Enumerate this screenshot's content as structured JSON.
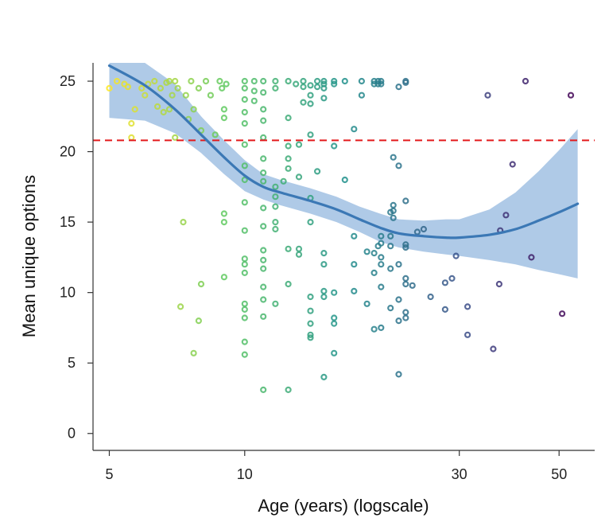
{
  "chart_data": {
    "type": "scatter",
    "title": "",
    "xlabel": "Age (years) (logscale)",
    "ylabel": "Mean unique options",
    "xscale": "log",
    "xlim": [
      4.6,
      60
    ],
    "ylim": [
      -1.2,
      26.3
    ],
    "xticks": [
      5,
      10,
      30,
      50
    ],
    "yticks": [
      0,
      5,
      10,
      15,
      20,
      25
    ],
    "reference_line": {
      "y": 20.8,
      "style": "dashed",
      "color": "#e31a1c"
    },
    "colors": {
      "fit_line": "#3b78b5",
      "ci_band": "#8db3dd",
      "axis": "#333333"
    },
    "colormap": "viridis (young = yellow, old = purple)",
    "fit": {
      "x": [
        5,
        6,
        7,
        8,
        9,
        10,
        11,
        12,
        14,
        16,
        18,
        20,
        22,
        25,
        28,
        30,
        35,
        40,
        45,
        50,
        55
      ],
      "y": [
        26.1,
        24.7,
        23.0,
        21.2,
        19.6,
        18.3,
        17.5,
        17.1,
        16.5,
        15.9,
        15.2,
        14.6,
        14.2,
        14.0,
        13.9,
        13.9,
        14.1,
        14.5,
        15.1,
        15.7,
        16.3
      ],
      "lower": [
        22.4,
        22.2,
        21.3,
        19.9,
        18.4,
        17.2,
        16.6,
        16.2,
        15.6,
        15.0,
        14.3,
        13.6,
        13.2,
        12.9,
        12.7,
        12.6,
        12.3,
        12.0,
        11.6,
        11.3,
        11.0
      ],
      "upper": [
        26.3,
        26.3,
        24.8,
        22.5,
        20.8,
        19.4,
        18.4,
        18.0,
        17.4,
        16.8,
        16.1,
        15.6,
        15.2,
        15.1,
        15.2,
        15.2,
        15.9,
        17.1,
        18.6,
        20.1,
        21.6
      ]
    },
    "points": [
      [
        5.0,
        24.5
      ],
      [
        5.2,
        25.0
      ],
      [
        5.4,
        24.8
      ],
      [
        5.5,
        24.6
      ],
      [
        5.6,
        22.0
      ],
      [
        5.6,
        21.0
      ],
      [
        5.7,
        23.0
      ],
      [
        5.9,
        24.5
      ],
      [
        6.0,
        24.0
      ],
      [
        6.1,
        24.8
      ],
      [
        6.3,
        25.0
      ],
      [
        6.4,
        23.2
      ],
      [
        6.5,
        24.5
      ],
      [
        6.6,
        22.8
      ],
      [
        6.7,
        24.9
      ],
      [
        6.8,
        25.0
      ],
      [
        6.8,
        23.0
      ],
      [
        6.9,
        24.0
      ],
      [
        7.0,
        25.0
      ],
      [
        7.0,
        21.0
      ],
      [
        7.1,
        24.5
      ],
      [
        7.2,
        9.0
      ],
      [
        7.3,
        15.0
      ],
      [
        7.4,
        24.0
      ],
      [
        7.5,
        22.3
      ],
      [
        7.6,
        25.0
      ],
      [
        7.7,
        5.7
      ],
      [
        7.7,
        23.0
      ],
      [
        7.9,
        24.5
      ],
      [
        7.9,
        8.0
      ],
      [
        8.0,
        10.6
      ],
      [
        8.0,
        21.5
      ],
      [
        8.2,
        25.0
      ],
      [
        8.4,
        24.0
      ],
      [
        8.6,
        21.2
      ],
      [
        8.8,
        25.0
      ],
      [
        8.9,
        24.5
      ],
      [
        9.0,
        23.0
      ],
      [
        9.0,
        22.4
      ],
      [
        9.0,
        11.1
      ],
      [
        9.0,
        15.6
      ],
      [
        9.0,
        15.0
      ],
      [
        9.1,
        24.8
      ],
      [
        10.0,
        25.0
      ],
      [
        10.0,
        24.5
      ],
      [
        10.0,
        23.7
      ],
      [
        10.0,
        22.8
      ],
      [
        10.0,
        22.0
      ],
      [
        10.0,
        20.5
      ],
      [
        10.0,
        19.0
      ],
      [
        10.0,
        18.0
      ],
      [
        10.0,
        16.4
      ],
      [
        10.0,
        14.4
      ],
      [
        10.0,
        12.4
      ],
      [
        10.0,
        12.0
      ],
      [
        10.0,
        11.4
      ],
      [
        10.0,
        9.2
      ],
      [
        10.0,
        8.8
      ],
      [
        10.0,
        8.2
      ],
      [
        10.0,
        6.5
      ],
      [
        10.0,
        5.6
      ],
      [
        10.5,
        25.0
      ],
      [
        10.5,
        24.3
      ],
      [
        10.5,
        23.6
      ],
      [
        11.0,
        25.0
      ],
      [
        11.0,
        24.2
      ],
      [
        11.0,
        23.0
      ],
      [
        11.0,
        22.2
      ],
      [
        11.0,
        21.0
      ],
      [
        11.0,
        19.5
      ],
      [
        11.0,
        18.5
      ],
      [
        11.0,
        17.9
      ],
      [
        11.0,
        16.0
      ],
      [
        11.0,
        14.7
      ],
      [
        11.0,
        13.0
      ],
      [
        11.0,
        12.3
      ],
      [
        11.0,
        11.7
      ],
      [
        11.0,
        10.4
      ],
      [
        11.0,
        9.5
      ],
      [
        11.0,
        8.3
      ],
      [
        11.0,
        3.1
      ],
      [
        11.7,
        25.0
      ],
      [
        11.7,
        24.5
      ],
      [
        11.7,
        17.5
      ],
      [
        11.7,
        16.8
      ],
      [
        11.7,
        16.1
      ],
      [
        11.7,
        15.0
      ],
      [
        11.7,
        14.5
      ],
      [
        11.7,
        9.2
      ],
      [
        12.2,
        17.9
      ],
      [
        12.5,
        25.0
      ],
      [
        12.5,
        22.4
      ],
      [
        12.5,
        20.4
      ],
      [
        12.5,
        19.5
      ],
      [
        12.5,
        18.8
      ],
      [
        12.5,
        13.1
      ],
      [
        12.5,
        10.6
      ],
      [
        12.5,
        3.1
      ],
      [
        13.0,
        24.8
      ],
      [
        13.2,
        20.5
      ],
      [
        13.2,
        18.2
      ],
      [
        13.2,
        13.1
      ],
      [
        13.2,
        12.7
      ],
      [
        13.5,
        25.0
      ],
      [
        13.5,
        24.6
      ],
      [
        13.5,
        23.5
      ],
      [
        14.0,
        24.7
      ],
      [
        14.0,
        24.0
      ],
      [
        14.0,
        23.4
      ],
      [
        14.0,
        21.2
      ],
      [
        14.0,
        16.7
      ],
      [
        14.0,
        15.0
      ],
      [
        14.0,
        9.7
      ],
      [
        14.0,
        8.7
      ],
      [
        14.0,
        7.8
      ],
      [
        14.0,
        7.0
      ],
      [
        14.0,
        6.8
      ],
      [
        14.5,
        25.0
      ],
      [
        14.5,
        24.6
      ],
      [
        14.5,
        18.6
      ],
      [
        15.0,
        25.0
      ],
      [
        15.0,
        24.8
      ],
      [
        15.0,
        24.5
      ],
      [
        15.0,
        23.8
      ],
      [
        15.0,
        12.8
      ],
      [
        15.0,
        12.0
      ],
      [
        15.0,
        10.1
      ],
      [
        15.0,
        9.7
      ],
      [
        15.0,
        4.0
      ],
      [
        15.8,
        25.0
      ],
      [
        15.8,
        24.8
      ],
      [
        15.8,
        20.4
      ],
      [
        15.8,
        10.0
      ],
      [
        15.8,
        8.2
      ],
      [
        15.8,
        7.8
      ],
      [
        15.8,
        5.7
      ],
      [
        16.7,
        25.0
      ],
      [
        16.7,
        18.0
      ],
      [
        17.5,
        21.6
      ],
      [
        17.5,
        14.0
      ],
      [
        17.5,
        12.0
      ],
      [
        17.5,
        10.1
      ],
      [
        18.2,
        25.0
      ],
      [
        18.2,
        24.0
      ],
      [
        18.7,
        12.9
      ],
      [
        18.7,
        9.2
      ],
      [
        19.4,
        25.0
      ],
      [
        19.4,
        24.8
      ],
      [
        19.4,
        12.8
      ],
      [
        19.4,
        11.4
      ],
      [
        19.4,
        7.4
      ],
      [
        19.8,
        25.0
      ],
      [
        19.8,
        24.8
      ],
      [
        19.8,
        13.3
      ],
      [
        20.1,
        25.0
      ],
      [
        20.1,
        24.8
      ],
      [
        20.1,
        14.0
      ],
      [
        20.1,
        13.5
      ],
      [
        20.1,
        12.5
      ],
      [
        20.1,
        12.0
      ],
      [
        20.1,
        10.4
      ],
      [
        20.1,
        7.5
      ],
      [
        21.1,
        15.7
      ],
      [
        21.1,
        14.0
      ],
      [
        21.1,
        13.3
      ],
      [
        21.1,
        11.7
      ],
      [
        21.1,
        8.9
      ],
      [
        21.4,
        19.6
      ],
      [
        21.4,
        16.2
      ],
      [
        21.4,
        15.8
      ],
      [
        21.4,
        15.3
      ],
      [
        22.0,
        24.6
      ],
      [
        22.0,
        19.0
      ],
      [
        22.0,
        12.0
      ],
      [
        22.0,
        9.5
      ],
      [
        22.0,
        8.0
      ],
      [
        22.0,
        4.2
      ],
      [
        22.8,
        25.0
      ],
      [
        22.8,
        24.9
      ],
      [
        22.8,
        16.5
      ],
      [
        22.8,
        13.4
      ],
      [
        22.8,
        13.2
      ],
      [
        22.8,
        11.0
      ],
      [
        22.8,
        10.6
      ],
      [
        22.8,
        8.6
      ],
      [
        22.8,
        8.2
      ],
      [
        23.6,
        10.5
      ],
      [
        24.2,
        14.3
      ],
      [
        25.0,
        14.5
      ],
      [
        25.9,
        9.7
      ],
      [
        27.9,
        10.7
      ],
      [
        27.9,
        8.8
      ],
      [
        28.9,
        11.0
      ],
      [
        29.5,
        12.6
      ],
      [
        31.3,
        9.0
      ],
      [
        31.3,
        7.0
      ],
      [
        34.7,
        24.0
      ],
      [
        35.7,
        6.0
      ],
      [
        36.8,
        10.6
      ],
      [
        37.0,
        14.4
      ],
      [
        38.1,
        15.5
      ],
      [
        39.4,
        19.1
      ],
      [
        42.1,
        25.0
      ],
      [
        43.4,
        12.5
      ],
      [
        50.8,
        8.5
      ],
      [
        53.1,
        24.0
      ]
    ]
  }
}
